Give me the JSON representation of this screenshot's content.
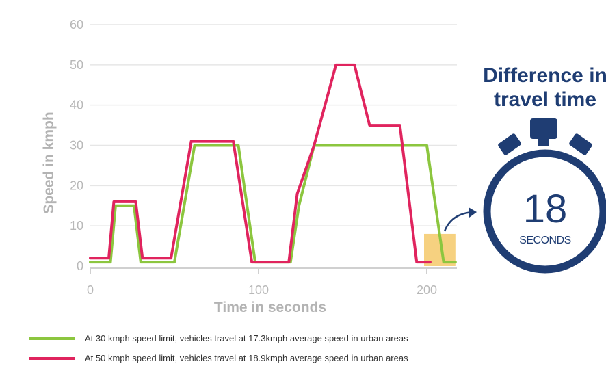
{
  "chart_data": {
    "type": "line",
    "xlabel": "Time in seconds",
    "ylabel": "Speed in kmph",
    "xlim": [
      0,
      215
    ],
    "ylim": [
      0,
      60
    ],
    "x_ticks": [
      "0",
      "100",
      "200"
    ],
    "x_tick_values": [
      0,
      100,
      200
    ],
    "y_ticks": [
      "0",
      "10",
      "20",
      "30",
      "40",
      "50",
      "60"
    ],
    "y_tick_values": [
      0,
      10,
      20,
      30,
      40,
      50,
      60
    ],
    "grid": "horizontal",
    "legend_position": "bottom",
    "highlight": {
      "x_range": [
        200,
        217
      ],
      "y_range": [
        0,
        8
      ],
      "color": "#f5c96a"
    },
    "series": [
      {
        "name": "At 30 kmph speed limit, vehicles travel at 17.3kmph average speed in urban areas",
        "color": "#8cc63f",
        "x": [
          0,
          12,
          15,
          26,
          30,
          50,
          62,
          88,
          98,
          119,
          124,
          133,
          200,
          210,
          217
        ],
        "y": [
          1,
          1,
          15,
          15,
          1,
          1,
          30,
          30,
          1,
          1,
          15,
          30,
          30,
          1,
          1
        ]
      },
      {
        "name": "At 50 kmph speed limit, vehicles travel at 18.9kmph average speed in urban areas",
        "color": "#e0245e",
        "x": [
          0,
          11,
          14,
          27,
          31,
          48,
          60,
          85,
          96,
          118,
          123,
          133,
          146,
          157,
          166,
          184,
          194,
          202
        ],
        "y": [
          2,
          2,
          16,
          16,
          2,
          2,
          31,
          31,
          1,
          1,
          18,
          30,
          50,
          50,
          35,
          35,
          1,
          1
        ]
      }
    ]
  },
  "timer": {
    "title_line1": "Difference in",
    "title_line2": "travel time",
    "value": "18",
    "unit": "SECONDS",
    "color": "#1f3d73"
  }
}
